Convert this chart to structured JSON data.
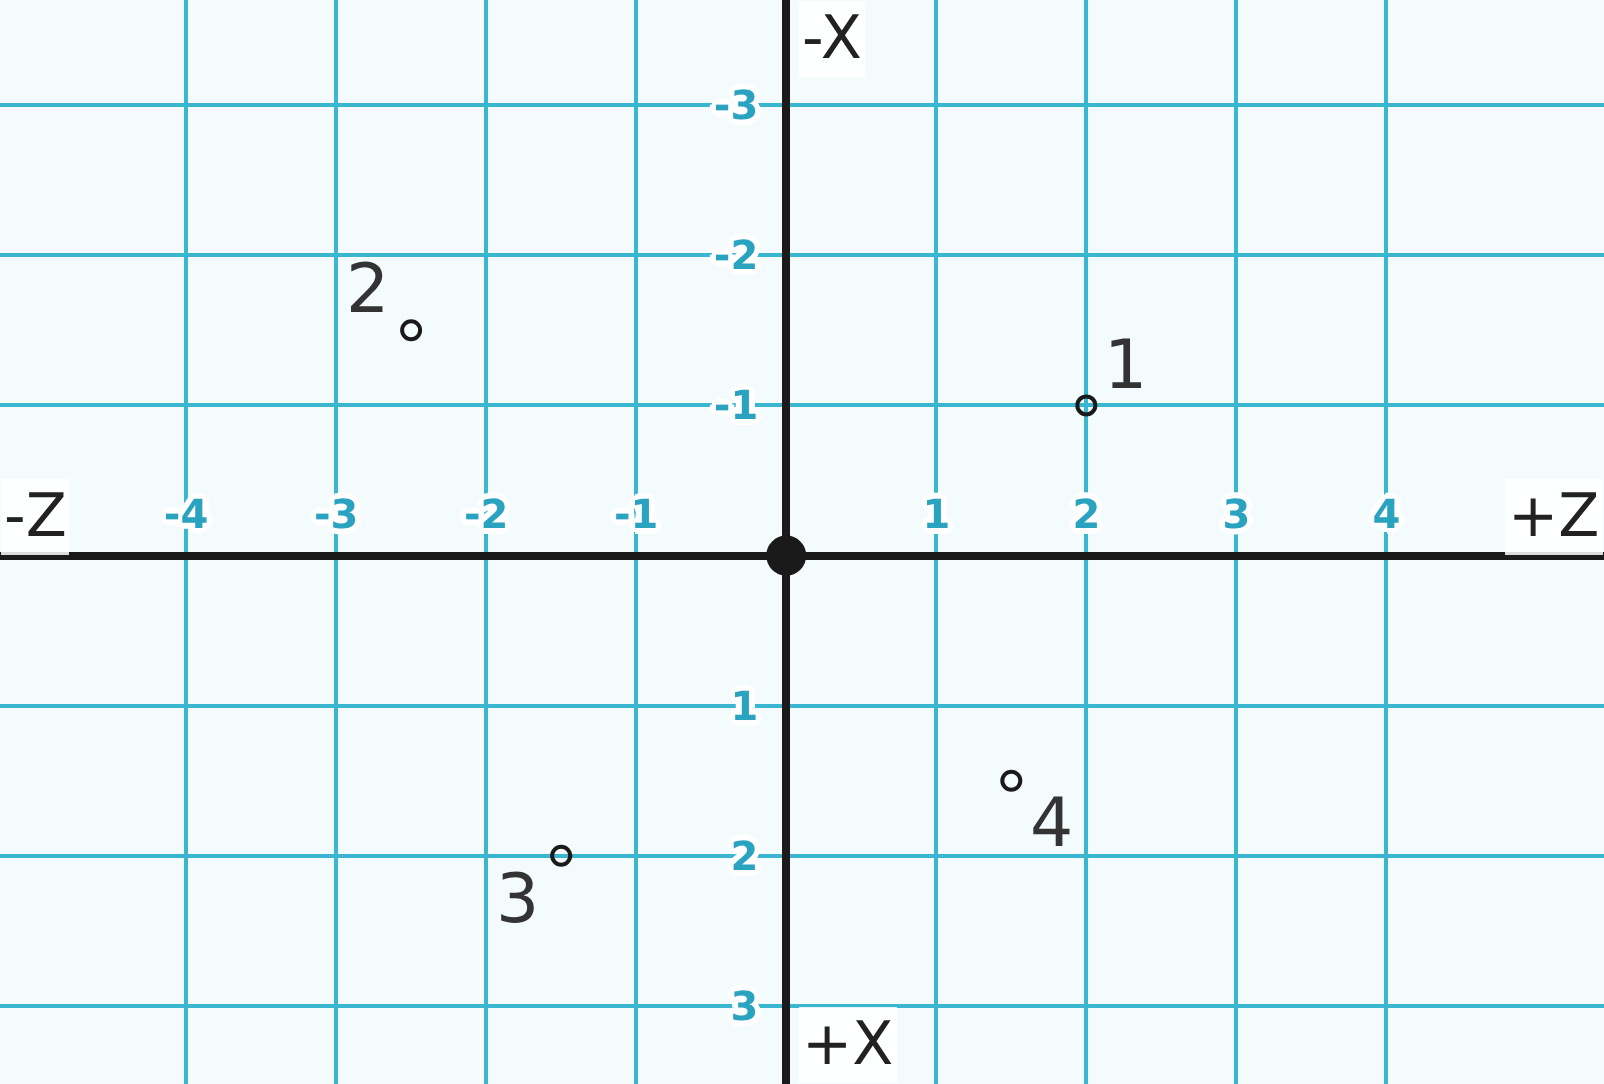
{
  "chart_data": {
    "type": "scatter",
    "series": [
      {
        "color": "#1a1a1a",
        "x": [
          2,
          -2.5,
          -1.5,
          1.5
        ],
        "values": [
          -1,
          -1.5,
          2,
          1.5
        ]
      },
      {
        "color": "#1a1a1a",
        "x": [
          0
        ],
        "values": [
          0
        ],
        "marker": "circle-filled"
      }
    ],
    "annotations": [
      {
        "text": "1",
        "x": 2,
        "y": -1
      },
      {
        "text": "2",
        "x": -2.5,
        "y": -1.5
      },
      {
        "text": "3",
        "x": -1.5,
        "y": 2
      },
      {
        "text": "4",
        "x": 1.5,
        "y": 1.5
      },
      "-Z",
      "+Z",
      "-X",
      "+X"
    ],
    "xlim": [
      -5.24,
      5.45
    ],
    "ylim": [
      3.52,
      -3.7
    ],
    "xticks": [
      -4,
      -3,
      -2,
      -1,
      1,
      2,
      3,
      4
    ],
    "yticks": [
      -3,
      -2,
      -1,
      1,
      2,
      3
    ],
    "grid": true,
    "marker": "circle"
  }
}
